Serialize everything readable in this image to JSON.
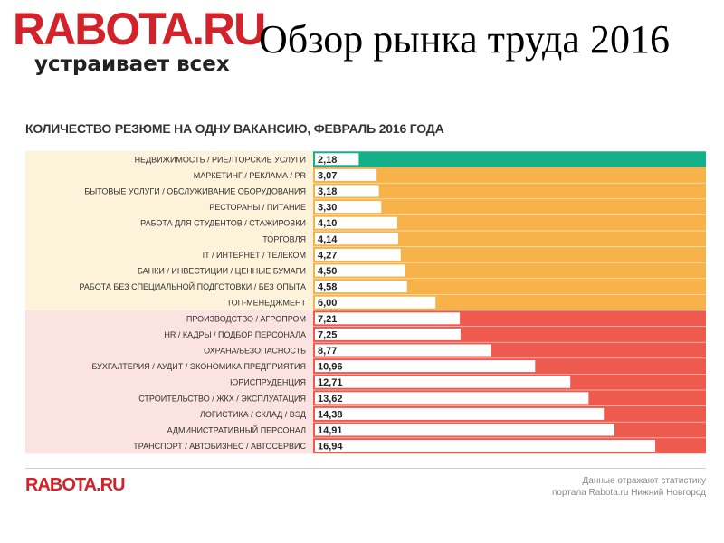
{
  "brand": {
    "logo": "RABOTA.RU",
    "tagline": "устраивает всех"
  },
  "page_title": "Обзор рынка труда 2016",
  "footer": {
    "logo": "RABOTA.RU",
    "note_line1": "Данные отражают статистику",
    "note_line2": "портала Rabota.ru Нижний Новгород"
  },
  "colors": {
    "green": "#14b08a",
    "orange": "#f7b24a",
    "red": "#ef5a4e",
    "bg_orange": "#fdf3da",
    "bg_red": "#fbe3e1"
  },
  "chart_data": {
    "type": "bar",
    "orientation": "horizontal",
    "title": "КОЛИЧЕСТВО РЕЗЮМЕ НА ОДНУ ВАКАНСИЮ, ФЕВРАЛЬ 2016 ГОДА",
    "xlim": [
      0,
      18.5
    ],
    "categories": [
      "НЕДВИЖИМОСТЬ / РИЕЛТОРСКИЕ УСЛУГИ",
      "МАРКЕТИНГ / РЕКЛАМА / PR",
      "БЫТОВЫЕ УСЛУГИ / ОБСЛУЖИВАНИЕ ОБОРУДОВАНИЯ",
      "РЕСТОРАНЫ / ПИТАНИЕ",
      "РАБОТА ДЛЯ СТУДЕНТОВ / СТАЖИРОВКИ",
      "ТОРГОВЛЯ",
      "IT / ИНТЕРНЕТ / ТЕЛЕКОМ",
      "БАНКИ / ИНВЕСТИЦИИ / ЦЕННЫЕ БУМАГИ",
      "РАБОТА БЕЗ СПЕЦИАЛЬНОЙ ПОДГОТОВКИ / БЕЗ ОПЫТА",
      "ТОП-МЕНЕДЖМЕНТ",
      "ПРОИЗВОДСТВО / АГРОПРОМ",
      "HR / КАДРЫ / ПОДБОР ПЕРСОНАЛА",
      "ОХРАНА/БЕЗОПАСНОСТЬ",
      "БУХГАЛТЕРИЯ / АУДИТ / ЭКОНОМИКА ПРЕДПРИЯТИЯ",
      "ЮРИСПРУДЕНЦИЯ",
      "СТРОИТЕЛЬСТВО / ЖКХ / ЭКСПЛУАТАЦИЯ",
      "ЛОГИСТИКА / СКЛАД / ВЭД",
      "АДМИНИСТРАТИВНЫЙ ПЕРСОНАЛ",
      "ТРАНСПОРТ / АВТОБИЗНЕС / АВТОСЕРВИС"
    ],
    "values": [
      2.18,
      3.07,
      3.18,
      3.3,
      4.1,
      4.14,
      4.27,
      4.5,
      4.58,
      6.0,
      7.21,
      7.25,
      8.77,
      10.96,
      12.71,
      13.62,
      14.38,
      14.91,
      16.94
    ],
    "value_labels": [
      "2,18",
      "3,07",
      "3,18",
      "3,30",
      "4,10",
      "4,14",
      "4,27",
      "4,50",
      "4,58",
      "6,00",
      "7,21",
      "7,25",
      "8,77",
      "10,96",
      "12,71",
      "13,62",
      "14,38",
      "14,91",
      "16,94"
    ],
    "groups": [
      "green",
      "orange",
      "orange",
      "orange",
      "orange",
      "orange",
      "orange",
      "orange",
      "orange",
      "orange",
      "red",
      "red",
      "red",
      "red",
      "red",
      "red",
      "red",
      "red",
      "red"
    ]
  }
}
